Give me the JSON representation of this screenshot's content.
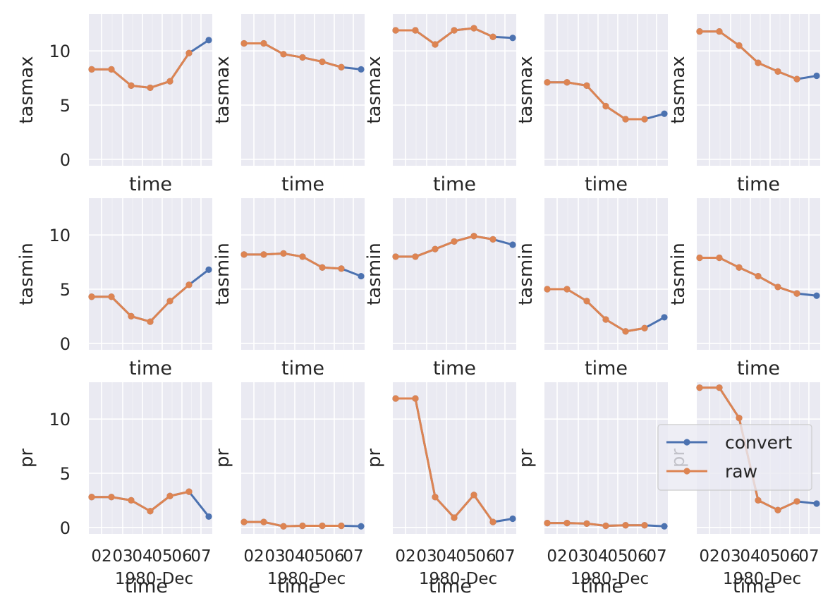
{
  "figure": {
    "background": "#ffffff",
    "panel_background": "#eaeaf2",
    "grid_color": "#ffffff",
    "text_color": "#262626"
  },
  "chart_data": {
    "type": "line",
    "layout": "3x5 grid of subplots, shared y axis per row",
    "x_ticks": [
      "02",
      "03",
      "04",
      "05",
      "06",
      "07"
    ],
    "x_offset_label": "1980-Dec",
    "xlabel": "time",
    "y_ticks": [
      0,
      5,
      10
    ],
    "ylim": [
      -0.6,
      13.4
    ],
    "legend": {
      "location": "right",
      "panel": [
        2,
        3
      ],
      "entries": [
        "convert",
        "raw"
      ]
    },
    "series_styles": {
      "convert": {
        "color": "#4c72b0",
        "marker": "circle"
      },
      "raw": {
        "color": "#dd8452",
        "marker": "circle"
      }
    },
    "rows": [
      {
        "variable": "tasmax",
        "ylabel": "tasmax",
        "panels": [
          {
            "convert": [
              8.3,
              8.3,
              6.8,
              6.6,
              7.2,
              9.8,
              11.0
            ],
            "raw": [
              8.3,
              8.3,
              6.8,
              6.6,
              7.2,
              9.8
            ]
          },
          {
            "convert": [
              10.7,
              10.7,
              9.7,
              9.4,
              9.0,
              8.5,
              8.3
            ],
            "raw": [
              10.7,
              10.7,
              9.7,
              9.4,
              9.0,
              8.5
            ]
          },
          {
            "convert": [
              11.9,
              11.9,
              10.6,
              11.9,
              12.1,
              11.3,
              11.2
            ],
            "raw": [
              11.9,
              11.9,
              10.6,
              11.9,
              12.1,
              11.3
            ]
          },
          {
            "convert": [
              7.1,
              7.1,
              6.8,
              4.9,
              3.7,
              3.7,
              4.2
            ],
            "raw": [
              7.1,
              7.1,
              6.8,
              4.9,
              3.7,
              3.7
            ]
          },
          {
            "convert": [
              11.8,
              11.8,
              10.5,
              8.9,
              8.1,
              7.4,
              7.7
            ],
            "raw": [
              11.8,
              11.8,
              10.5,
              8.9,
              8.1,
              7.4
            ]
          }
        ]
      },
      {
        "variable": "tasmin",
        "ylabel": "tasmin",
        "panels": [
          {
            "convert": [
              4.3,
              4.3,
              2.5,
              2.0,
              3.9,
              5.4,
              6.8
            ],
            "raw": [
              4.3,
              4.3,
              2.5,
              2.0,
              3.9,
              5.4
            ]
          },
          {
            "convert": [
              8.2,
              8.2,
              8.3,
              8.0,
              7.0,
              6.9,
              6.2
            ],
            "raw": [
              8.2,
              8.2,
              8.3,
              8.0,
              7.0,
              6.9
            ]
          },
          {
            "convert": [
              8.0,
              8.0,
              8.7,
              9.4,
              9.9,
              9.6,
              9.1
            ],
            "raw": [
              8.0,
              8.0,
              8.7,
              9.4,
              9.9,
              9.6
            ]
          },
          {
            "convert": [
              5.0,
              5.0,
              3.9,
              2.2,
              1.1,
              1.4,
              2.4
            ],
            "raw": [
              5.0,
              5.0,
              3.9,
              2.2,
              1.1,
              1.4
            ]
          },
          {
            "convert": [
              7.9,
              7.9,
              7.0,
              6.2,
              5.2,
              4.6,
              4.4
            ],
            "raw": [
              7.9,
              7.9,
              7.0,
              6.2,
              5.2,
              4.6
            ]
          }
        ]
      },
      {
        "variable": "pr",
        "ylabel": "pr",
        "panels": [
          {
            "convert": [
              2.8,
              2.8,
              2.5,
              1.5,
              2.9,
              3.3,
              1.0
            ],
            "raw": [
              2.8,
              2.8,
              2.5,
              1.5,
              2.9,
              3.3
            ]
          },
          {
            "convert": [
              0.5,
              0.5,
              0.1,
              0.15,
              0.15,
              0.15,
              0.1
            ],
            "raw": [
              0.5,
              0.5,
              0.1,
              0.15,
              0.15,
              0.15
            ]
          },
          {
            "convert": [
              11.9,
              11.9,
              2.8,
              0.9,
              3.0,
              0.5,
              0.8
            ],
            "raw": [
              11.9,
              11.9,
              2.8,
              0.9,
              3.0,
              0.5
            ]
          },
          {
            "convert": [
              0.4,
              0.4,
              0.35,
              0.15,
              0.2,
              0.2,
              0.1
            ],
            "raw": [
              0.4,
              0.4,
              0.35,
              0.15,
              0.2,
              0.2
            ]
          },
          {
            "convert": [
              12.9,
              12.9,
              10.1,
              2.5,
              1.6,
              2.4,
              2.2
            ],
            "raw": [
              12.9,
              12.9,
              10.1,
              2.5,
              1.6,
              2.4
            ]
          }
        ]
      }
    ]
  }
}
